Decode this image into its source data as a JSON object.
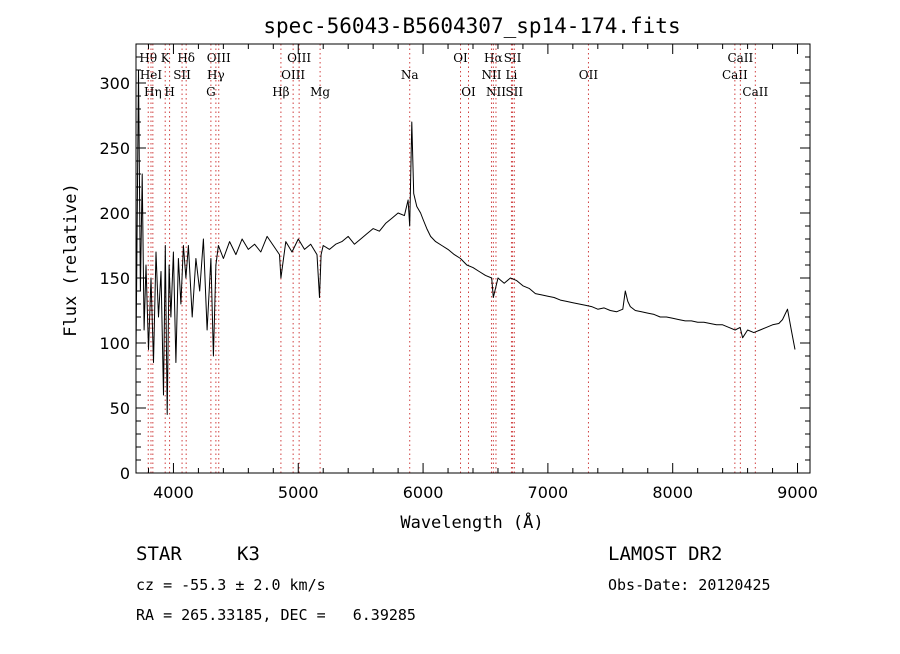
{
  "chart_data": {
    "type": "line",
    "title": "spec-56043-B5604307_sp14-174.fits",
    "xlabel": "Wavelength (Å)",
    "ylabel": "Flux (relative)",
    "xlim": [
      3700,
      9100
    ],
    "ylim": [
      0,
      330
    ],
    "x_ticks": [
      4000,
      5000,
      6000,
      7000,
      8000,
      9000
    ],
    "y_ticks": [
      0,
      50,
      100,
      150,
      200,
      250,
      300
    ],
    "grid": false,
    "series": [
      {
        "x": [
          3700,
          3720,
          3735,
          3750,
          3765,
          3780,
          3800,
          3820,
          3840,
          3860,
          3880,
          3900,
          3920,
          3935,
          3950,
          3965,
          3980,
          4000,
          4020,
          4040,
          4060,
          4080,
          4100,
          4120,
          4150,
          4180,
          4210,
          4240,
          4270,
          4300,
          4320,
          4340,
          4360,
          4400,
          4450,
          4500,
          4550,
          4600,
          4650,
          4700,
          4750,
          4800,
          4850,
          4861,
          4900,
          4950,
          5000,
          5050,
          5100,
          5150,
          5170,
          5183,
          5200,
          5250,
          5300,
          5350,
          5400,
          5450,
          5500,
          5550,
          5600,
          5650,
          5700,
          5750,
          5800,
          5850,
          5880,
          5893,
          5910,
          5925,
          5950,
          5980,
          6000,
          6030,
          6060,
          6100,
          6150,
          6200,
          6250,
          6300,
          6350,
          6400,
          6450,
          6500,
          6550,
          6563,
          6600,
          6650,
          6700,
          6750,
          6800,
          6850,
          6900,
          6950,
          7000,
          7050,
          7100,
          7150,
          7200,
          7250,
          7300,
          7350,
          7400,
          7450,
          7500,
          7550,
          7600,
          7620,
          7640,
          7660,
          7700,
          7750,
          7800,
          7850,
          7900,
          7950,
          8000,
          8050,
          8100,
          8150,
          8200,
          8250,
          8300,
          8350,
          8400,
          8450,
          8500,
          8540,
          8560,
          8600,
          8650,
          8700,
          8750,
          8800,
          8850,
          8880,
          8900,
          8920,
          8950,
          8980
        ],
        "y": [
          90,
          310,
          140,
          230,
          110,
          160,
          95,
          150,
          85,
          170,
          120,
          155,
          60,
          175,
          45,
          160,
          120,
          170,
          85,
          165,
          130,
          175,
          150,
          175,
          120,
          165,
          140,
          180,
          110,
          165,
          90,
          160,
          175,
          165,
          178,
          168,
          180,
          172,
          176,
          170,
          182,
          175,
          168,
          150,
          178,
          170,
          180,
          172,
          176,
          168,
          135,
          168,
          175,
          172,
          176,
          178,
          182,
          176,
          180,
          184,
          188,
          186,
          192,
          196,
          200,
          198,
          210,
          190,
          270,
          215,
          205,
          200,
          195,
          188,
          182,
          178,
          175,
          172,
          168,
          165,
          160,
          158,
          155,
          152,
          150,
          135,
          150,
          146,
          150,
          148,
          144,
          142,
          138,
          137,
          136,
          135,
          133,
          132,
          131,
          130,
          129,
          128,
          126,
          127,
          125,
          124,
          126,
          140,
          132,
          128,
          125,
          124,
          123,
          122,
          120,
          120,
          119,
          118,
          117,
          117,
          116,
          116,
          115,
          114,
          114,
          112,
          110,
          112,
          104,
          110,
          108,
          110,
          112,
          114,
          115,
          118,
          122,
          126,
          110,
          95
        ]
      }
    ],
    "line_markers": [
      {
        "label": "Hθ",
        "wl": 3798,
        "row": 1
      },
      {
        "label": "HeI",
        "wl": 3820,
        "row": 2
      },
      {
        "label": "Hη",
        "wl": 3835,
        "row": 3
      },
      {
        "label": "K",
        "wl": 3934,
        "row": 1
      },
      {
        "label": "SII",
        "wl": 4069,
        "row": 2
      },
      {
        "label": "H",
        "wl": 3969,
        "row": 3
      },
      {
        "label": "Hδ",
        "wl": 4102,
        "row": 1
      },
      {
        "label": "OIII",
        "wl": 4363,
        "row": 1
      },
      {
        "label": "Hγ",
        "wl": 4340,
        "row": 2
      },
      {
        "label": "G",
        "wl": 4300,
        "row": 3
      },
      {
        "label": "Hβ",
        "wl": 4861,
        "row": 3
      },
      {
        "label": "OIII",
        "wl": 4959,
        "row": 2
      },
      {
        "label": "OIII",
        "wl": 5007,
        "row": 1
      },
      {
        "label": "Mg",
        "wl": 5175,
        "row": 3
      },
      {
        "label": "Na",
        "wl": 5893,
        "row": 2
      },
      {
        "label": "OI",
        "wl": 6300,
        "row": 1
      },
      {
        "label": "OI",
        "wl": 6364,
        "row": 3
      },
      {
        "label": "Hα",
        "wl": 6563,
        "row": 1
      },
      {
        "label": "NII",
        "wl": 6548,
        "row": 2
      },
      {
        "label": "NII",
        "wl": 6584,
        "row": 3
      },
      {
        "label": "SII",
        "wl": 6717,
        "row": 1
      },
      {
        "label": "Li",
        "wl": 6708,
        "row": 2
      },
      {
        "label": "SII",
        "wl": 6731,
        "row": 3
      },
      {
        "label": "OII",
        "wl": 7325,
        "row": 2
      },
      {
        "label": "CaII",
        "wl": 8498,
        "row": 2
      },
      {
        "label": "CaII",
        "wl": 8542,
        "row": 1
      },
      {
        "label": "CaII",
        "wl": 8662,
        "row": 3
      }
    ]
  },
  "info": {
    "object_class": "STAR",
    "subclass": "K3",
    "survey": "LAMOST DR2",
    "cz": "cz = -55.3 ± 2.0 km/s",
    "obs_date": "Obs-Date: 20120425",
    "coords": "RA = 265.33185, DEC =   6.39285"
  }
}
